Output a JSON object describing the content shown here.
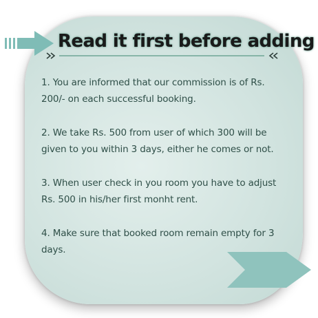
{
  "title": "Read it first before adding",
  "rules": [
    "1. You are informed that our commission is of Rs. 200/- on each successful booking.",
    "2. We take Rs. 500 from user of which 300 will be given to you within 3 days, either he comes or not.",
    "3. When user check in you room you have to adjust Rs. 500 in his/her first monht rent.",
    "4. Make sure that booked room remain empty for 3 days."
  ],
  "colors": {
    "card": "#d1e3df",
    "accent": "#7fbcb6",
    "text": "#2f4f48",
    "title_glow": "#6ea595"
  },
  "icons": {
    "left": "right-arrow-icon",
    "underline": "chevron-underline-icon",
    "bottom": "right-arrow-icon"
  }
}
